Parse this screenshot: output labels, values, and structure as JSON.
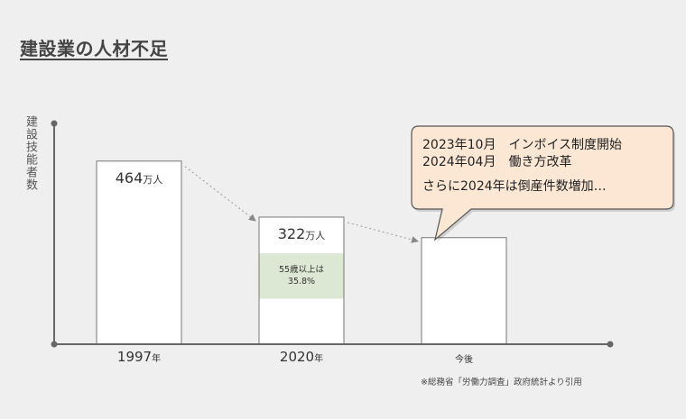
{
  "colors": {
    "background": "#efefef",
    "bar_fill": "#ffffff",
    "bar_stroke": "#777777",
    "highlight": "#dce8d4",
    "axis": "#666666",
    "callout_fill": "#fbe7d4",
    "callout_stroke": "#555555"
  },
  "chart_data": {
    "type": "bar",
    "title": "建設業の人材不足",
    "ylabel": "建設技能者数",
    "ylim": [
      0,
      500
    ],
    "categories": [
      "1997",
      "2020",
      "今後"
    ],
    "category_units": [
      "年",
      "年",
      ""
    ],
    "values": [
      464,
      322,
      270
    ],
    "value_labels": [
      "464",
      "322",
      ""
    ],
    "value_unit": "万人",
    "highlight": {
      "category": "2020",
      "share_percent": 35.8,
      "label_line1": "55歳以上は",
      "label_line2": "35.8%"
    },
    "trend_arrows": true,
    "grid": false
  },
  "callout": {
    "line1": "2023年10月　インボイス制度開始",
    "line2": "2024年04月　働き方改革",
    "line3": "さらに2024年は倒産件数増加…"
  },
  "source": "※総務省「労働力調査」政府統計より引用"
}
